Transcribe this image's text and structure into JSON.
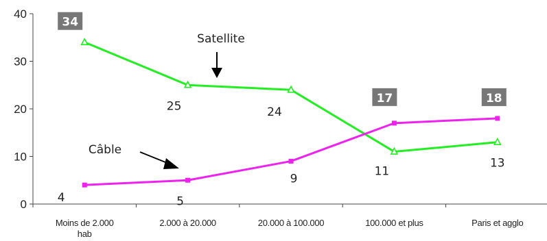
{
  "chart_data": {
    "type": "line",
    "categories": [
      "Moins de 2.000 hab",
      "2.000 à 20.000",
      "20.000 à 100.000",
      "100.000 et plus",
      "Paris et agglo"
    ],
    "category_lines": [
      [
        "Moins de 2.000",
        "hab"
      ],
      [
        "2.000 à 20.000"
      ],
      [
        "20.000 à 100.000"
      ],
      [
        "100.000 et plus"
      ],
      [
        "Paris et agglo"
      ]
    ],
    "ylim": [
      0,
      40
    ],
    "yticks": [
      0,
      10,
      20,
      30,
      40
    ],
    "grid": false,
    "legend": "none",
    "series": [
      {
        "name": "Satellite",
        "values": [
          34,
          25,
          24,
          11,
          13
        ],
        "color": "#22ee22",
        "marker": "triangle",
        "labels": [
          "34",
          "25",
          "24",
          "11",
          "13"
        ],
        "boxed": [
          true,
          false,
          false,
          false,
          false
        ]
      },
      {
        "name": "Câble",
        "values": [
          4,
          5,
          9,
          17,
          18
        ],
        "color": "#ee22ee",
        "marker": "square",
        "labels": [
          "4",
          "5",
          "9",
          "17",
          "18"
        ],
        "boxed": [
          false,
          false,
          false,
          true,
          true
        ]
      }
    ],
    "annotations": [
      {
        "text": "Satellite",
        "target_series": 0,
        "target_index": 1.5
      },
      {
        "text": "Câble",
        "target_series": 1,
        "target_index": 1
      }
    ],
    "label_box_color": "#777777"
  }
}
